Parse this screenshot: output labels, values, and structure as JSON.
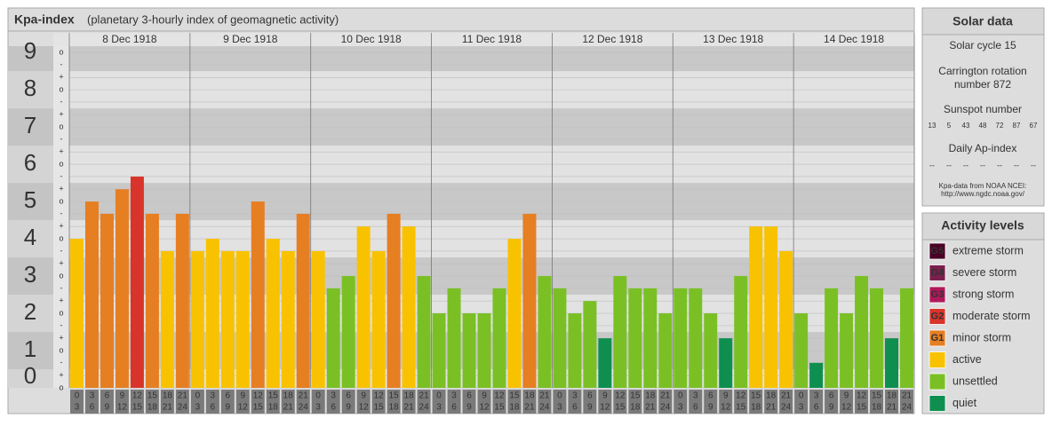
{
  "header": {
    "title": "Kpa-index",
    "subtitle": "(planetary 3-hourly index of geomagnetic activity)"
  },
  "chart_data": {
    "type": "bar",
    "days": [
      "8 Dec 1918",
      "9 Dec 1918",
      "10 Dec 1918",
      "11 Dec 1918",
      "12 Dec 1918",
      "13 Dec 1918",
      "14 Dec 1918"
    ],
    "hours": [
      [
        "0",
        "3"
      ],
      [
        "3",
        "6"
      ],
      [
        "6",
        "9"
      ],
      [
        "9",
        "12"
      ],
      [
        "12",
        "15"
      ],
      [
        "15",
        "18"
      ],
      [
        "18",
        "21"
      ],
      [
        "21",
        "24"
      ]
    ],
    "values": [
      4,
      5,
      4.67,
      5.33,
      5.67,
      4.67,
      3.67,
      4.67,
      3.67,
      4,
      3.67,
      3.67,
      5,
      4,
      3.67,
      4.67,
      3.67,
      2.67,
      3,
      4.33,
      3.67,
      4.67,
      4.33,
      3,
      2,
      2.67,
      2,
      2,
      2.67,
      4,
      4.67,
      3,
      2.67,
      2,
      2.33,
      1.33,
      3,
      2.67,
      2.67,
      2,
      2.67,
      2.67,
      2,
      1.33,
      3,
      4.33,
      4.33,
      3.67,
      2,
      0.67,
      2.67,
      2,
      3,
      2.67,
      1.33,
      2.67
    ],
    "colors": [
      "#f9c200",
      "#e67e22",
      "#e67e22",
      "#e67e22",
      "#d9342b",
      "#e67e22",
      "#f9c200",
      "#e67e22",
      "#f9c200",
      "#f9c200",
      "#f9c200",
      "#f9c200",
      "#e67e22",
      "#f9c200",
      "#f9c200",
      "#e67e22",
      "#f9c200",
      "#7ac025",
      "#7ac025",
      "#f9c200",
      "#f9c200",
      "#e67e22",
      "#f9c200",
      "#7ac025",
      "#7ac025",
      "#7ac025",
      "#7ac025",
      "#7ac025",
      "#7ac025",
      "#f9c200",
      "#e67e22",
      "#7ac025",
      "#7ac025",
      "#7ac025",
      "#7ac025",
      "#0e8f4f",
      "#7ac025",
      "#7ac025",
      "#7ac025",
      "#7ac025",
      "#7ac025",
      "#7ac025",
      "#7ac025",
      "#0e8f4f",
      "#7ac025",
      "#f9c200",
      "#f9c200",
      "#f9c200",
      "#7ac025",
      "#0e8f4f",
      "#7ac025",
      "#7ac025",
      "#7ac025",
      "#7ac025",
      "#0e8f4f",
      "#7ac025"
    ],
    "ylim": [
      0,
      9.17
    ],
    "yticks": [
      0,
      1,
      2,
      3,
      4,
      5,
      6,
      7,
      8,
      9
    ],
    "minor_yticks": [
      {
        "value": 0,
        "label": "o"
      },
      {
        "value": 0.33,
        "label": "+"
      },
      {
        "value": 0.67,
        "label": "-"
      },
      {
        "value": 1,
        "label": "o"
      },
      {
        "value": 1.33,
        "label": "+"
      },
      {
        "value": 1.67,
        "label": "-"
      },
      {
        "value": 2,
        "label": "o"
      },
      {
        "value": 2.33,
        "label": "+"
      },
      {
        "value": 2.67,
        "label": "-"
      },
      {
        "value": 3,
        "label": "o"
      },
      {
        "value": 3.33,
        "label": "+"
      },
      {
        "value": 3.67,
        "label": "-"
      },
      {
        "value": 4,
        "label": "o"
      },
      {
        "value": 4.33,
        "label": "+"
      },
      {
        "value": 4.67,
        "label": "-"
      },
      {
        "value": 5,
        "label": "o"
      },
      {
        "value": 5.33,
        "label": "+"
      },
      {
        "value": 5.67,
        "label": "-"
      },
      {
        "value": 6,
        "label": "o"
      },
      {
        "value": 6.33,
        "label": "+"
      },
      {
        "value": 6.67,
        "label": "-"
      },
      {
        "value": 7,
        "label": "o"
      },
      {
        "value": 7.33,
        "label": "+"
      },
      {
        "value": 7.67,
        "label": "-"
      },
      {
        "value": 8,
        "label": "o"
      },
      {
        "value": 8.33,
        "label": "+"
      },
      {
        "value": 8.67,
        "label": "-"
      },
      {
        "value": 9,
        "label": "o"
      }
    ],
    "grid": true
  },
  "solar_data": {
    "title": "Solar data",
    "solar_cycle": "Solar cycle 15",
    "carrington": [
      "Carrington rotation",
      "number 872"
    ],
    "sunspot_title": "Sunspot number",
    "sunspot_numbers": [
      13,
      5,
      43,
      48,
      72,
      87,
      67
    ],
    "ap_title": "Daily Ap-index",
    "ap_index": [
      "--",
      "--",
      "--",
      "--",
      "--",
      "--",
      "--"
    ],
    "source": [
      "Kpa-data from NOAA NCEI:",
      "http://www.ngdc.noaa.gov/"
    ]
  },
  "activity_levels": {
    "title": "Activity levels",
    "items": [
      {
        "badge": "G5",
        "label": "extreme storm",
        "color": "#4a0026"
      },
      {
        "badge": "G4",
        "label": "severe storm",
        "color": "#7a1f4d"
      },
      {
        "badge": "G3",
        "label": "strong storm",
        "color": "#b0185a"
      },
      {
        "badge": "G2",
        "label": "moderate storm",
        "color": "#d9342b"
      },
      {
        "badge": "G1",
        "label": "minor storm",
        "color": "#e67e22"
      },
      {
        "label": "active",
        "color": "#f9c200"
      },
      {
        "label": "unsettled",
        "color": "#7ac025"
      },
      {
        "label": "quiet",
        "color": "#0e8f4f"
      }
    ]
  }
}
